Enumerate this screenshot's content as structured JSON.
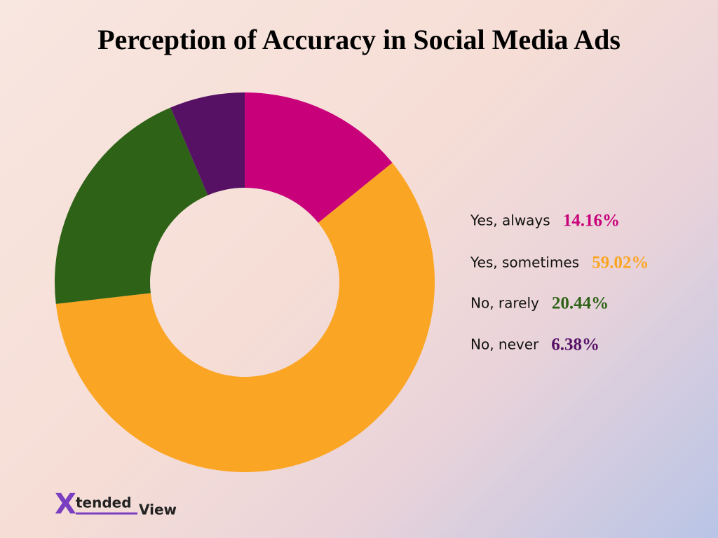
{
  "chart_data": {
    "type": "donut",
    "title": "Perception of Accuracy in Social Media Ads",
    "categories": [
      "Yes, always",
      "Yes, sometimes",
      "No, rarely",
      "No, never"
    ],
    "values": [
      14.16,
      59.02,
      20.44,
      6.38
    ],
    "value_labels": [
      "14.16%",
      "59.02%",
      "20.44%",
      "6.38%"
    ],
    "colors": [
      "#c8007a",
      "#fba524",
      "#2e6317",
      "#561165"
    ]
  },
  "logo": [
    "X",
    "tended",
    "View"
  ]
}
